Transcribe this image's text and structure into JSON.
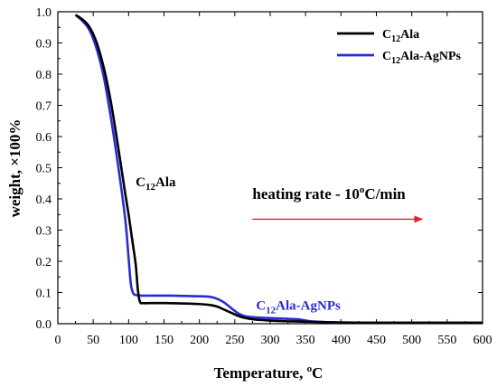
{
  "chart_data": {
    "type": "line",
    "xlabel": "Temperature, °C",
    "ylabel": "weight, ×100%",
    "xlim": [
      0,
      600
    ],
    "ylim": [
      0,
      1.0
    ],
    "x_ticks": [
      "0",
      "50",
      "100",
      "150",
      "200",
      "250",
      "300",
      "350",
      "400",
      "450",
      "500",
      "550",
      "600"
    ],
    "y_ticks": [
      "0.0",
      "0.1",
      "0.2",
      "0.3",
      "0.4",
      "0.5",
      "0.6",
      "0.7",
      "0.8",
      "0.9",
      "1.0"
    ],
    "grid": false,
    "legend_position": "top-right",
    "series": [
      {
        "name": "C12Ala",
        "color": "#000000",
        "x": [
          25,
          35,
          45,
          55,
          65,
          75,
          85,
          95,
          100,
          105,
          110,
          113,
          116,
          120,
          130,
          150,
          175,
          200,
          215,
          225,
          235,
          245,
          255,
          265,
          280,
          300,
          320,
          340,
          360,
          400,
          450,
          500,
          550,
          600
        ],
        "y": [
          0.99,
          0.975,
          0.95,
          0.9,
          0.82,
          0.71,
          0.57,
          0.42,
          0.35,
          0.27,
          0.19,
          0.11,
          0.07,
          0.066,
          0.066,
          0.066,
          0.065,
          0.063,
          0.06,
          0.055,
          0.045,
          0.035,
          0.025,
          0.018,
          0.013,
          0.01,
          0.008,
          0.007,
          0.006,
          0.004,
          0.003,
          0.003,
          0.003,
          0.003
        ]
      },
      {
        "name": "C12Ala-AgNPs",
        "color": "#2a2ad6",
        "x": [
          25,
          35,
          45,
          55,
          65,
          75,
          85,
          95,
          100,
          103,
          106,
          110,
          120,
          140,
          160,
          180,
          200,
          215,
          225,
          235,
          245,
          255,
          265,
          280,
          300,
          320,
          340,
          350,
          360,
          380,
          400,
          450,
          500,
          550,
          600
        ],
        "y": [
          0.99,
          0.97,
          0.94,
          0.88,
          0.79,
          0.66,
          0.51,
          0.34,
          0.21,
          0.13,
          0.1,
          0.092,
          0.09,
          0.09,
          0.09,
          0.089,
          0.088,
          0.086,
          0.08,
          0.068,
          0.05,
          0.033,
          0.024,
          0.02,
          0.018,
          0.016,
          0.014,
          0.01,
          0.007,
          0.005,
          0.004,
          0.003,
          0.003,
          0.003,
          0.003
        ]
      }
    ],
    "legend": [
      {
        "main": "C",
        "sub": "12",
        "rest": "Ala",
        "color": "#000000"
      },
      {
        "main": "C",
        "sub": "12",
        "rest": "Ala-AgNPs",
        "color": "#2a2ad6"
      }
    ],
    "annotations": [
      {
        "main": "C",
        "sub": "12",
        "rest": "Ala",
        "color": "#000000",
        "x": 110,
        "y": 0.44
      },
      {
        "main": "C",
        "sub": "12",
        "rest": "Ala-AgNPs",
        "color": "#2a2ad6",
        "x": 280,
        "y": 0.045
      }
    ],
    "heating_rate": {
      "text_before": "heating rate - 10",
      "sup": "o",
      "text_after": "C/min",
      "arrow_color": "#e02020",
      "x": 275,
      "y": 0.4,
      "arrow_from": [
        275,
        0.335
      ],
      "arrow_to": [
        520,
        0.335
      ]
    }
  }
}
